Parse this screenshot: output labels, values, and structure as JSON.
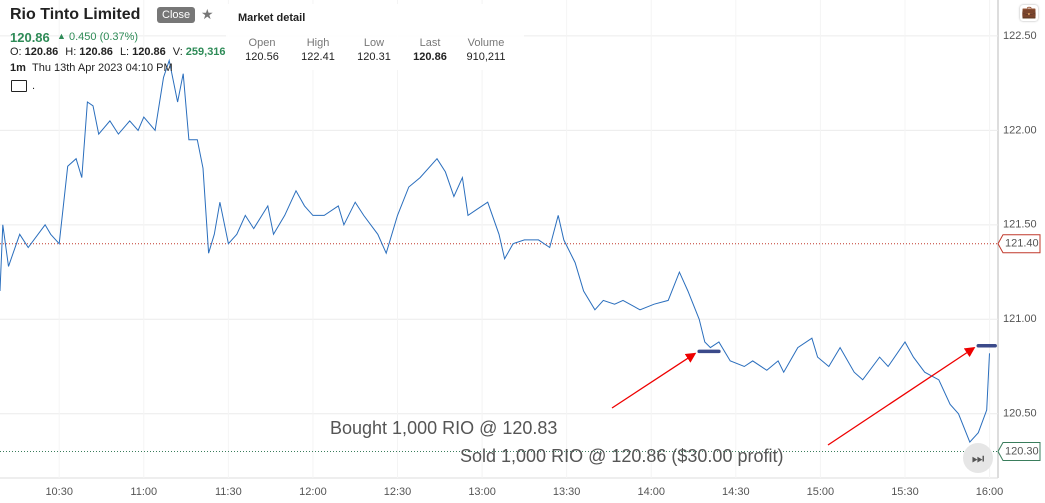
{
  "header": {
    "title": "Rio Tinto Limited",
    "close_button": "Close",
    "price": "120.86",
    "change": "0.450 (0.37%)",
    "ohlc": [
      {
        "label": "O:",
        "value": "120.86"
      },
      {
        "label": "H:",
        "value": "120.86"
      },
      {
        "label": "L:",
        "value": "120.86"
      },
      {
        "label": "V:",
        "value": "259,316"
      }
    ],
    "interval": "1m",
    "timestamp": "Thu 13th Apr 2023 04:10 PM",
    "folder": "."
  },
  "market_detail": {
    "title": "Market detail",
    "columns": [
      "Open",
      "High",
      "Low",
      "Last",
      "Volume"
    ],
    "values": [
      "120.56",
      "122.41",
      "120.31",
      "120.86",
      "910,211"
    ]
  },
  "chart_data": {
    "type": "line",
    "color": "#2a6ebd",
    "grid": true,
    "x": [
      609,
      610,
      612,
      616,
      619,
      625,
      627,
      630,
      633,
      636,
      638,
      640,
      642,
      644,
      648,
      651,
      655,
      658,
      660,
      664,
      667,
      669,
      672,
      674,
      676,
      679,
      681,
      683,
      685,
      687,
      690,
      693,
      696,
      699,
      704,
      706,
      710,
      714,
      717,
      720,
      724,
      729,
      731,
      735,
      738,
      743,
      746,
      750,
      754,
      758,
      764,
      767,
      770,
      773,
      775,
      778,
      782,
      786,
      788,
      791,
      795,
      800,
      804,
      807,
      809,
      813,
      816,
      820,
      823,
      827,
      830,
      836,
      841,
      846,
      850,
      853,
      857,
      859,
      861,
      864,
      868,
      873,
      876,
      881,
      885,
      887,
      892,
      897,
      899,
      903,
      907,
      912,
      915,
      921,
      924,
      930,
      933,
      937,
      942,
      946,
      949,
      953,
      956,
      959,
      960
    ],
    "values": [
      121.15,
      121.5,
      121.28,
      121.45,
      121.38,
      121.5,
      121.45,
      121.4,
      121.81,
      121.85,
      121.75,
      122.15,
      122.13,
      121.98,
      122.05,
      121.98,
      122.05,
      122.0,
      122.07,
      122.0,
      122.28,
      122.37,
      122.15,
      122.3,
      121.95,
      121.95,
      121.8,
      121.35,
      121.45,
      121.62,
      121.4,
      121.45,
      121.55,
      121.48,
      121.6,
      121.45,
      121.55,
      121.68,
      121.6,
      121.55,
      121.55,
      121.6,
      121.5,
      121.62,
      121.55,
      121.45,
      121.35,
      121.55,
      121.7,
      121.75,
      121.85,
      121.78,
      121.65,
      121.75,
      121.55,
      121.58,
      121.62,
      121.45,
      121.32,
      121.4,
      121.42,
      121.42,
      121.38,
      121.55,
      121.42,
      121.3,
      121.15,
      121.05,
      121.1,
      121.08,
      121.1,
      121.05,
      121.08,
      121.1,
      121.25,
      121.15,
      121.0,
      120.88,
      120.85,
      120.88,
      120.78,
      120.75,
      120.78,
      120.73,
      120.78,
      120.72,
      120.85,
      120.9,
      120.8,
      120.75,
      120.85,
      120.72,
      120.68,
      120.8,
      120.75,
      120.88,
      120.8,
      120.72,
      120.68,
      120.55,
      120.5,
      120.35,
      120.4,
      120.52,
      120.82
    ],
    "xlim": [
      609,
      963
    ],
    "ylim": [
      120.16,
      122.69
    ],
    "xticks": [
      {
        "value": 630,
        "label": "10:30"
      },
      {
        "value": 660,
        "label": "11:00"
      },
      {
        "value": 690,
        "label": "11:30"
      },
      {
        "value": 720,
        "label": "12:00"
      },
      {
        "value": 750,
        "label": "12:30"
      },
      {
        "value": 780,
        "label": "13:00"
      },
      {
        "value": 810,
        "label": "13:30"
      },
      {
        "value": 840,
        "label": "14:00"
      },
      {
        "value": 870,
        "label": "14:30"
      },
      {
        "value": 900,
        "label": "15:00"
      },
      {
        "value": 930,
        "label": "15:30"
      },
      {
        "value": 960,
        "label": "16:00"
      }
    ],
    "yticks": [
      {
        "value": 120.5,
        "label": "120.50"
      },
      {
        "value": 121,
        "label": "121.00"
      },
      {
        "value": 121.5,
        "label": "121.50"
      },
      {
        "value": 122,
        "label": "122.00"
      },
      {
        "value": 122.5,
        "label": "122.50"
      }
    ],
    "reference_lines": [
      {
        "value": 121.4,
        "label": "121.40",
        "color": "#c0392b"
      },
      {
        "value": 120.3,
        "label": "120.30",
        "color": "#3a7d5c"
      }
    ],
    "trades": [
      {
        "text": "Bought 1,000 RIO @ 120.83",
        "price": 120.83,
        "x": [
          857,
          864
        ]
      },
      {
        "text": "Sold 1,000 RIO @ 120.86 ($30.00 profit)",
        "price": 120.86,
        "x": [
          956,
          962
        ]
      }
    ]
  }
}
